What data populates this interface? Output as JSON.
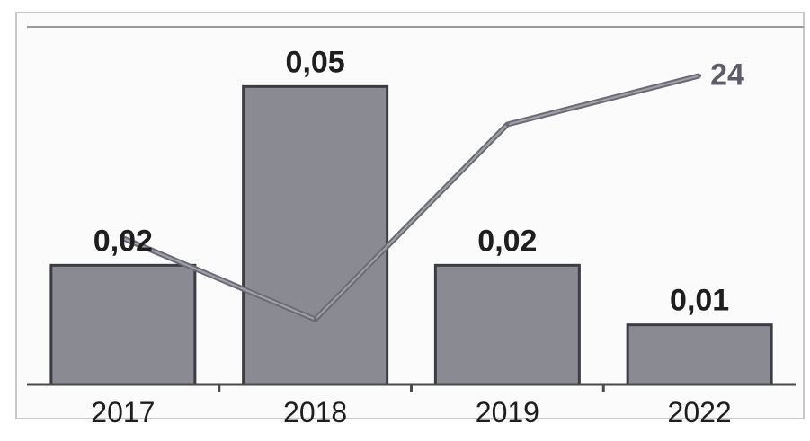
{
  "chart_data": {
    "type": "bar",
    "categories": [
      "2017",
      "2018",
      "2019",
      "2022"
    ],
    "values": [
      0.02,
      0.05,
      0.02,
      0.01
    ],
    "value_labels": [
      "0,02",
      "0,05",
      "0,02",
      "0,01"
    ],
    "ylim": [
      0,
      0.06
    ],
    "line_series": {
      "values": [
        14,
        9,
        21,
        24
      ],
      "end_label": "24",
      "ylim": [
        5,
        27
      ]
    },
    "grid": false,
    "title": "",
    "xlabel": "",
    "ylabel": ""
  },
  "colors": {
    "bar_fill": "#8a8a93",
    "bar_stroke": "#3c3c44",
    "line": "#6b6b76",
    "line_highlight": "#b9b9c0",
    "axis": "#4a4a4a",
    "text": "#1e1e1e",
    "end_label": "#5d5d68"
  }
}
